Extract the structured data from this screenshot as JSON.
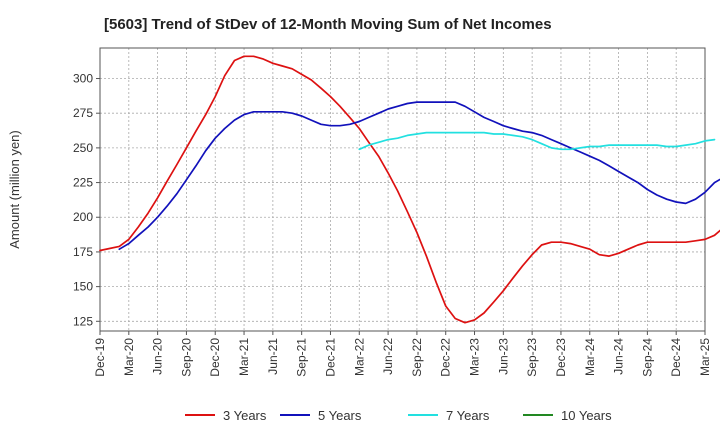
{
  "chart_data": {
    "type": "line",
    "title": "[5603]  Trend of StDev of 12-Month Moving Sum of Net Incomes",
    "ylabel": "Amount (million yen)",
    "xlabel": "",
    "ylim": [
      118,
      322
    ],
    "yticks": [
      125,
      150,
      175,
      200,
      225,
      250,
      275,
      300
    ],
    "x_ticks": [
      "Dec-19",
      "Mar-20",
      "Jun-20",
      "Sep-20",
      "Dec-20",
      "Mar-21",
      "Jun-21",
      "Sep-21",
      "Dec-21",
      "Mar-22",
      "Jun-22",
      "Sep-22",
      "Dec-22",
      "Mar-23",
      "Jun-23",
      "Sep-23",
      "Dec-23",
      "Mar-24",
      "Jun-24",
      "Sep-24",
      "Dec-24",
      "Mar-25"
    ],
    "grid": true,
    "legend_position": "bottom",
    "series": [
      {
        "name": "3 Years",
        "color": "#dd1111",
        "points": [
          [
            0,
            176
          ],
          [
            0.33,
            177.5
          ],
          [
            0.67,
            179
          ],
          [
            1,
            184
          ],
          [
            1.33,
            193
          ],
          [
            1.67,
            203
          ],
          [
            2,
            214
          ],
          [
            2.33,
            226
          ],
          [
            2.67,
            238
          ],
          [
            3,
            250
          ],
          [
            3.33,
            262
          ],
          [
            3.67,
            274
          ],
          [
            4,
            287
          ],
          [
            4.33,
            302
          ],
          [
            4.67,
            313
          ],
          [
            5,
            316
          ],
          [
            5.33,
            316
          ],
          [
            5.67,
            314
          ],
          [
            6,
            311
          ],
          [
            6.33,
            309
          ],
          [
            6.67,
            307
          ],
          [
            7,
            303
          ],
          [
            7.33,
            299
          ],
          [
            7.67,
            293
          ],
          [
            8,
            287
          ],
          [
            8.33,
            280
          ],
          [
            8.67,
            272
          ],
          [
            9,
            264
          ],
          [
            9.33,
            254
          ],
          [
            9.67,
            244
          ],
          [
            10,
            232
          ],
          [
            10.33,
            219
          ],
          [
            10.67,
            204
          ],
          [
            11,
            189
          ],
          [
            11.33,
            172
          ],
          [
            11.67,
            153
          ],
          [
            12,
            136
          ],
          [
            12.33,
            127
          ],
          [
            12.67,
            124
          ],
          [
            13,
            126
          ],
          [
            13.33,
            131
          ],
          [
            13.67,
            139
          ],
          [
            14,
            147
          ],
          [
            14.33,
            156
          ],
          [
            14.67,
            165
          ],
          [
            15,
            173
          ],
          [
            15.33,
            180
          ],
          [
            15.67,
            182
          ],
          [
            16,
            182
          ],
          [
            16.33,
            181
          ],
          [
            16.67,
            179
          ],
          [
            17,
            177
          ],
          [
            17.33,
            173
          ],
          [
            17.67,
            172
          ],
          [
            18,
            174
          ],
          [
            18.33,
            177
          ],
          [
            18.67,
            180
          ],
          [
            19,
            182
          ],
          [
            19.33,
            182
          ],
          [
            19.67,
            182
          ],
          [
            20,
            182
          ],
          [
            20.33,
            182
          ],
          [
            20.67,
            183
          ],
          [
            21,
            184
          ],
          [
            21.33,
            187
          ],
          [
            21.67,
            193
          ],
          [
            22,
            203
          ]
        ]
      },
      {
        "name": "5 Years",
        "color": "#1111bb",
        "points": [
          [
            0.67,
            177
          ],
          [
            1,
            181
          ],
          [
            1.33,
            187
          ],
          [
            1.67,
            193
          ],
          [
            2,
            200
          ],
          [
            2.33,
            208
          ],
          [
            2.67,
            217
          ],
          [
            3,
            227
          ],
          [
            3.33,
            237
          ],
          [
            3.67,
            248
          ],
          [
            4,
            257
          ],
          [
            4.33,
            264
          ],
          [
            4.67,
            270
          ],
          [
            5,
            274
          ],
          [
            5.33,
            276
          ],
          [
            5.67,
            276
          ],
          [
            6,
            276
          ],
          [
            6.33,
            276
          ],
          [
            6.67,
            275
          ],
          [
            7,
            273
          ],
          [
            7.33,
            270
          ],
          [
            7.67,
            267
          ],
          [
            8,
            266
          ],
          [
            8.33,
            266
          ],
          [
            8.67,
            267
          ],
          [
            9,
            269
          ],
          [
            9.33,
            272
          ],
          [
            9.67,
            275
          ],
          [
            10,
            278
          ],
          [
            10.33,
            280
          ],
          [
            10.67,
            282
          ],
          [
            11,
            283
          ],
          [
            11.33,
            283
          ],
          [
            11.67,
            283
          ],
          [
            12,
            283
          ],
          [
            12.33,
            283
          ],
          [
            12.67,
            280
          ],
          [
            13,
            276
          ],
          [
            13.33,
            272
          ],
          [
            13.67,
            269
          ],
          [
            14,
            266
          ],
          [
            14.33,
            264
          ],
          [
            14.67,
            262
          ],
          [
            15,
            261
          ],
          [
            15.33,
            259
          ],
          [
            15.67,
            256
          ],
          [
            16,
            253
          ],
          [
            16.33,
            250
          ],
          [
            16.67,
            247
          ],
          [
            17,
            244
          ],
          [
            17.33,
            241
          ],
          [
            17.67,
            237
          ],
          [
            18,
            233
          ],
          [
            18.33,
            229
          ],
          [
            18.67,
            225
          ],
          [
            19,
            220
          ],
          [
            19.33,
            216
          ],
          [
            19.67,
            213
          ],
          [
            20,
            211
          ],
          [
            20.33,
            210
          ],
          [
            20.67,
            213
          ],
          [
            21,
            218
          ],
          [
            21.33,
            225
          ],
          [
            21.67,
            229
          ]
        ]
      },
      {
        "name": "7 Years",
        "color": "#22e0e0",
        "points": [
          [
            9,
            249
          ],
          [
            9.33,
            252
          ],
          [
            9.67,
            254
          ],
          [
            10,
            256
          ],
          [
            10.33,
            257
          ],
          [
            10.67,
            259
          ],
          [
            11,
            260
          ],
          [
            11.33,
            261
          ],
          [
            11.67,
            261
          ],
          [
            12,
            261
          ],
          [
            12.33,
            261
          ],
          [
            12.67,
            261
          ],
          [
            13,
            261
          ],
          [
            13.33,
            261
          ],
          [
            13.67,
            260
          ],
          [
            14,
            260
          ],
          [
            14.33,
            259
          ],
          [
            14.67,
            258
          ],
          [
            15,
            256
          ],
          [
            15.33,
            253
          ],
          [
            15.67,
            250
          ],
          [
            16,
            249
          ],
          [
            16.33,
            249
          ],
          [
            16.67,
            250
          ],
          [
            17,
            251
          ],
          [
            17.33,
            251
          ],
          [
            17.67,
            252
          ],
          [
            18,
            252
          ],
          [
            18.33,
            252
          ],
          [
            18.67,
            252
          ],
          [
            19,
            252
          ],
          [
            19.33,
            252
          ],
          [
            19.67,
            251
          ],
          [
            20,
            251
          ],
          [
            20.33,
            252
          ],
          [
            20.67,
            253
          ],
          [
            21,
            255
          ],
          [
            21.33,
            256
          ]
        ]
      },
      {
        "name": "10 Years",
        "color": "#228822",
        "points": []
      }
    ]
  }
}
